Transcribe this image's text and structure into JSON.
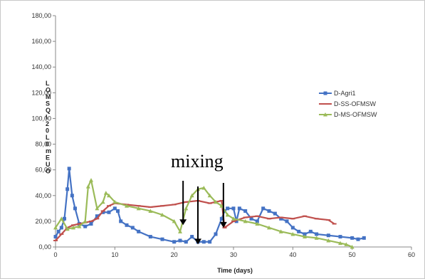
{
  "chart_data": {
    "type": "line",
    "title": "",
    "xlabel": "Time (days)",
    "ylabel": "LOMSQI20L0mEUO",
    "xlim": [
      0,
      60
    ],
    "ylim": [
      0,
      180
    ],
    "x_ticks": [
      0,
      10,
      20,
      30,
      40,
      50,
      60
    ],
    "y_ticks": [
      0,
      20,
      40,
      60,
      80,
      100,
      120,
      140,
      160,
      180
    ],
    "y_tick_labels": [
      "0,00",
      "20,00",
      "40,00",
      "60,00",
      "80,00",
      "100,00",
      "120,00",
      "140,00",
      "160,00",
      "180,00"
    ],
    "grid": false,
    "legend_position": "right",
    "series": [
      {
        "name": "D-Agri1",
        "color": "#4472c4",
        "marker": "square",
        "x": [
          0,
          0.5,
          1,
          1.5,
          2,
          2.3,
          2.8,
          3.3,
          4,
          5,
          6,
          7,
          8,
          9,
          10,
          10.5,
          11,
          12,
          13,
          14,
          16,
          18,
          20,
          21,
          22,
          23,
          24,
          25,
          26,
          27,
          28,
          28.5,
          29,
          30,
          30.5,
          31,
          32,
          33,
          34,
          35,
          36,
          37,
          38,
          39,
          40,
          41,
          42,
          43,
          44,
          46,
          48,
          50,
          51,
          52
        ],
        "y": [
          8,
          12,
          15,
          22,
          45,
          61,
          40,
          30,
          18,
          16,
          18,
          24,
          27,
          27,
          30,
          28,
          20,
          17,
          15,
          12,
          8,
          6,
          4,
          5,
          4,
          8,
          4,
          4,
          4,
          10,
          22,
          28,
          30,
          30,
          20,
          30,
          28,
          22,
          20,
          30,
          28,
          26,
          22,
          20,
          15,
          12,
          10,
          12,
          10,
          9,
          8,
          7,
          6,
          7
        ]
      },
      {
        "name": "D-SS-OFMSW",
        "color": "#c0504d",
        "marker": "dash",
        "x": [
          0,
          1,
          2,
          3,
          4,
          5,
          6,
          7,
          8,
          9,
          10,
          12,
          14,
          16,
          18,
          20,
          22,
          24,
          26,
          28,
          28.5,
          30,
          32,
          34,
          36,
          38,
          40,
          42,
          44,
          46,
          47
        ],
        "y": [
          5,
          10,
          15,
          17,
          18,
          19,
          20,
          22,
          28,
          32,
          34,
          33,
          32,
          31,
          32,
          33,
          35,
          36,
          34,
          36,
          15,
          20,
          23,
          24,
          22,
          23,
          22,
          24,
          22,
          21,
          18
        ]
      },
      {
        "name": "D-MS-OFMSW",
        "color": "#9bbb59",
        "marker": "triangle",
        "x": [
          0,
          1,
          2,
          3,
          4,
          5,
          5.5,
          6,
          7,
          8,
          8.5,
          9,
          10,
          12,
          14,
          16,
          18,
          20,
          21,
          22,
          23,
          24,
          25,
          26,
          27,
          28,
          29,
          30,
          32,
          34,
          36,
          38,
          40,
          42,
          44,
          46,
          48,
          49,
          50
        ],
        "y": [
          15,
          22,
          14,
          15,
          16,
          20,
          47,
          52,
          30,
          35,
          42,
          40,
          35,
          32,
          30,
          28,
          25,
          20,
          12,
          30,
          40,
          45,
          46,
          40,
          35,
          32,
          25,
          22,
          20,
          18,
          15,
          12,
          10,
          8,
          7,
          5,
          3,
          2,
          0
        ]
      }
    ],
    "annotation": {
      "text": "mixing",
      "arrows_at_days": [
        21.5,
        24,
        28.3
      ]
    }
  }
}
